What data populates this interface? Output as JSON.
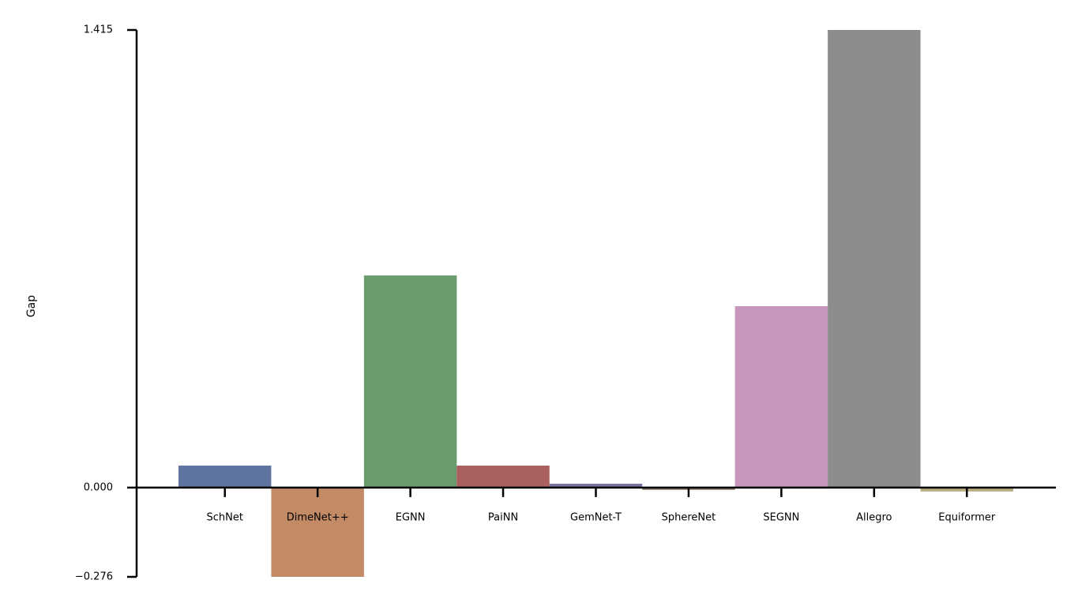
{
  "chart_data": {
    "type": "bar",
    "y_label": "Gap",
    "categories": [
      "SchNet",
      "DimeNet++",
      "EGNN",
      "PaiNN",
      "GemNet-T",
      "SphereNet",
      "SEGNN",
      "Allegro",
      "Equiformer"
    ],
    "values": [
      0.068,
      -0.276,
      0.656,
      0.068,
      0.012,
      -0.007,
      0.561,
      1.415,
      -0.012
    ],
    "colors": [
      "#5f74a0",
      "#c28a65",
      "#6b9c70",
      "#a9605e",
      "#7b70a0",
      "#8c7b65",
      "#c796bd",
      "#8c8c8c",
      "#b8ab7e"
    ],
    "ylim": [
      -0.276,
      1.415
    ],
    "yticks": [
      {
        "value": -0.276,
        "label": "−0.276"
      },
      {
        "value": 0,
        "label": "0.000"
      },
      1.415
    ],
    "grid": false
  }
}
